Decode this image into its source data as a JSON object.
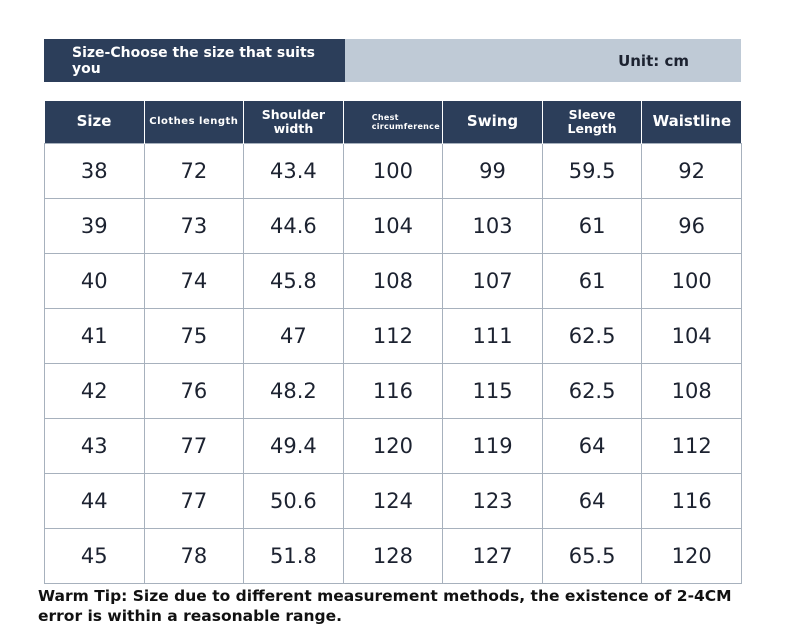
{
  "banner": {
    "left_text": "Size-Choose the size that suits you",
    "right_text": "Unit: cm"
  },
  "table": {
    "headers": [
      {
        "line1": "Size",
        "line2": ""
      },
      {
        "line1": "Clothes length",
        "line2": ""
      },
      {
        "line1": "Shoulder",
        "line2": "width"
      },
      {
        "line1": "Chest",
        "line2": "circumference"
      },
      {
        "line1": "Swing",
        "line2": ""
      },
      {
        "line1": "Sleeve",
        "line2": "Length"
      },
      {
        "line1": "Waistline",
        "line2": ""
      }
    ],
    "rows": [
      [
        "38",
        "72",
        "43.4",
        "100",
        "99",
        "59.5",
        "92"
      ],
      [
        "39",
        "73",
        "44.6",
        "104",
        "103",
        "61",
        "96"
      ],
      [
        "40",
        "74",
        "45.8",
        "108",
        "107",
        "61",
        "100"
      ],
      [
        "41",
        "75",
        "47",
        "112",
        "111",
        "62.5",
        "104"
      ],
      [
        "42",
        "76",
        "48.2",
        "116",
        "115",
        "62.5",
        "108"
      ],
      [
        "43",
        "77",
        "49.4",
        "120",
        "119",
        "64",
        "112"
      ],
      [
        "44",
        "77",
        "50.6",
        "124",
        "123",
        "64",
        "116"
      ],
      [
        "45",
        "78",
        "51.8",
        "128",
        "127",
        "65.5",
        "120"
      ]
    ]
  },
  "tip": "Warm Tip: Size due to different measurement methods, the existence of 2-4CM error is within a reasonable range."
}
